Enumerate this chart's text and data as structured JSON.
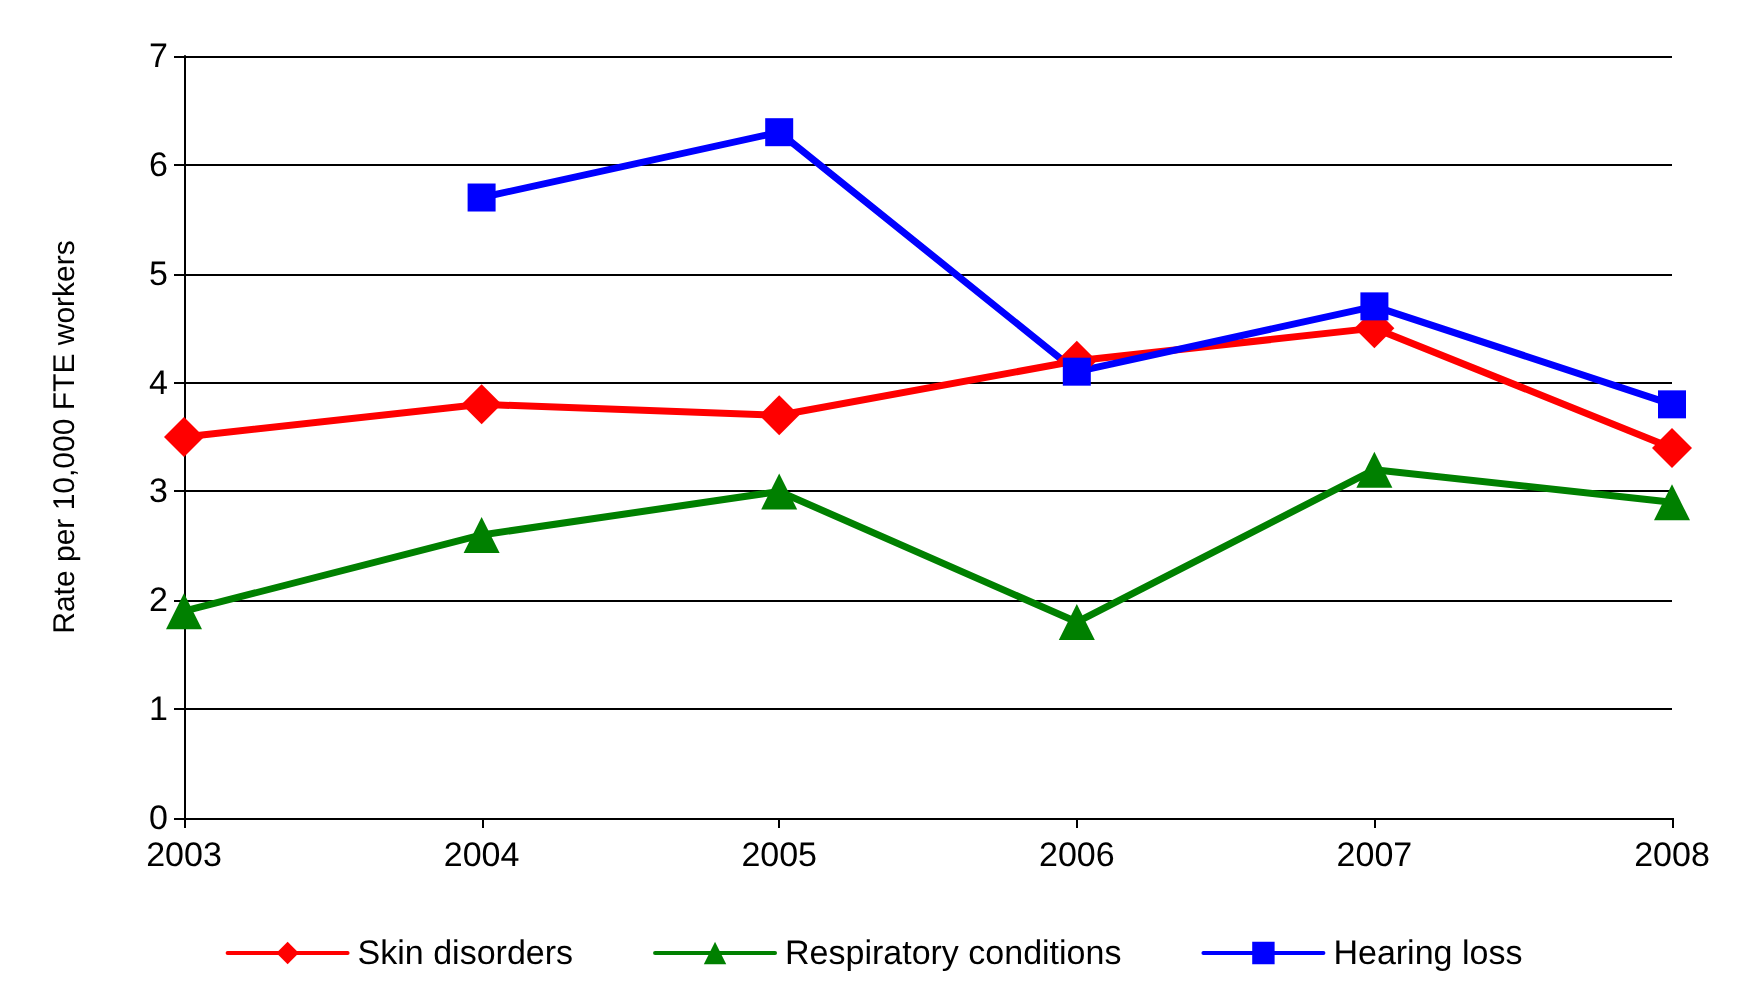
{
  "chart_data": {
    "type": "line",
    "ylabel": "Rate per 10,000 FTE workers",
    "categories": [
      "2003",
      "2004",
      "2005",
      "2006",
      "2007",
      "2008"
    ],
    "series": [
      {
        "name": "Skin disorders",
        "color": "#ff0000",
        "marker": "diamond",
        "values": [
          3.5,
          3.8,
          3.7,
          4.2,
          4.5,
          3.4
        ]
      },
      {
        "name": "Respiratory conditions",
        "color": "#008000",
        "marker": "triangle",
        "values": [
          1.9,
          2.6,
          3.0,
          1.8,
          3.2,
          2.9
        ]
      },
      {
        "name": "Hearing loss",
        "color": "#0000ff",
        "marker": "square",
        "values": [
          null,
          5.7,
          6.3,
          4.1,
          4.7,
          3.8
        ]
      }
    ],
    "ylim": [
      0,
      7
    ],
    "yticks": [
      0,
      1,
      2,
      3,
      4,
      5,
      6,
      7
    ],
    "grid": "y",
    "legend": "bottom",
    "line_style": "solid"
  }
}
